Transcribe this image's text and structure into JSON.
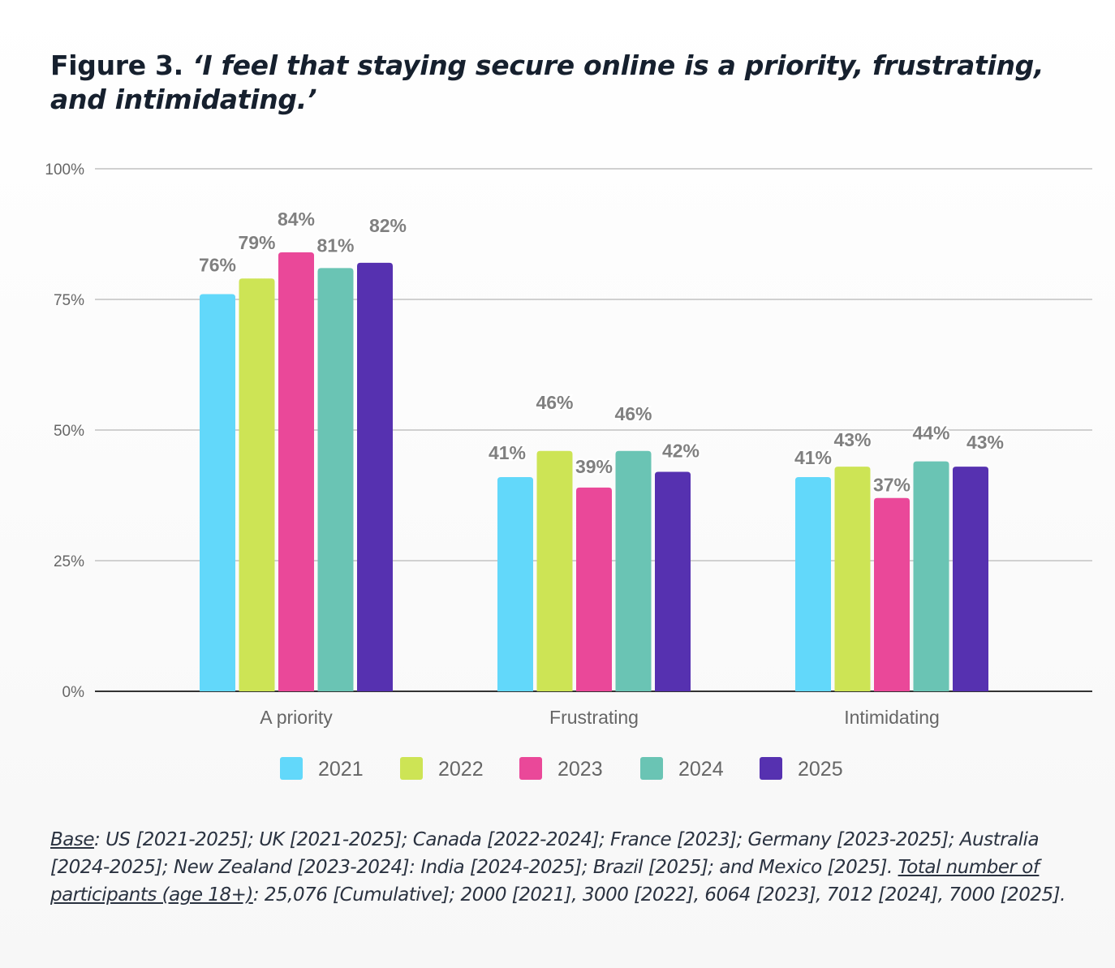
{
  "title": {
    "prefix": "Figure 3. ",
    "quote": "‘I feel that staying secure online is a priority, frustrating, and intimidating.’"
  },
  "chart_data": {
    "type": "bar",
    "title": "Figure 3. ‘I feel that staying secure online is a priority, frustrating, and intimidating.’",
    "xlabel": "",
    "ylabel": "",
    "ylim": [
      0,
      100
    ],
    "yticks": [
      0,
      25,
      50,
      75,
      100
    ],
    "ytick_labels": [
      "0%",
      "25%",
      "50%",
      "75%",
      "100%"
    ],
    "grid": true,
    "legend_position": "bottom",
    "categories": [
      "A priority",
      "Frustrating",
      "Intimidating"
    ],
    "series": [
      {
        "name": "2021",
        "color": "#62d8fa",
        "values": [
          76,
          41,
          41
        ]
      },
      {
        "name": "2022",
        "color": "#cde455",
        "values": [
          79,
          46,
          43
        ]
      },
      {
        "name": "2023",
        "color": "#ea4899",
        "values": [
          84,
          39,
          37
        ]
      },
      {
        "name": "2024",
        "color": "#6ac4b4",
        "values": [
          81,
          46,
          44
        ]
      },
      {
        "name": "2025",
        "color": "#5631b0",
        "values": [
          82,
          42,
          43
        ]
      }
    ],
    "value_label_suffix": "%"
  },
  "footnote": {
    "base_label": "Base",
    "base_text": ": US [2021-2025]; UK [2021-2025]; Canada [2022-2024]; France [2023]; Germany [2023-2025]; Australia [2024-2025]; New Zealand [2023-2024]: India [2024-2025]; Brazil [2025]; and Mexico [2025]. ",
    "participants_label": "Total number of participants (age 18+)",
    "participants_text": ": 25,076 [Cumulative]; 2000 [2021], 3000 [2022], 6064 [2023], 7012 [2024], 7000 [2025]."
  }
}
